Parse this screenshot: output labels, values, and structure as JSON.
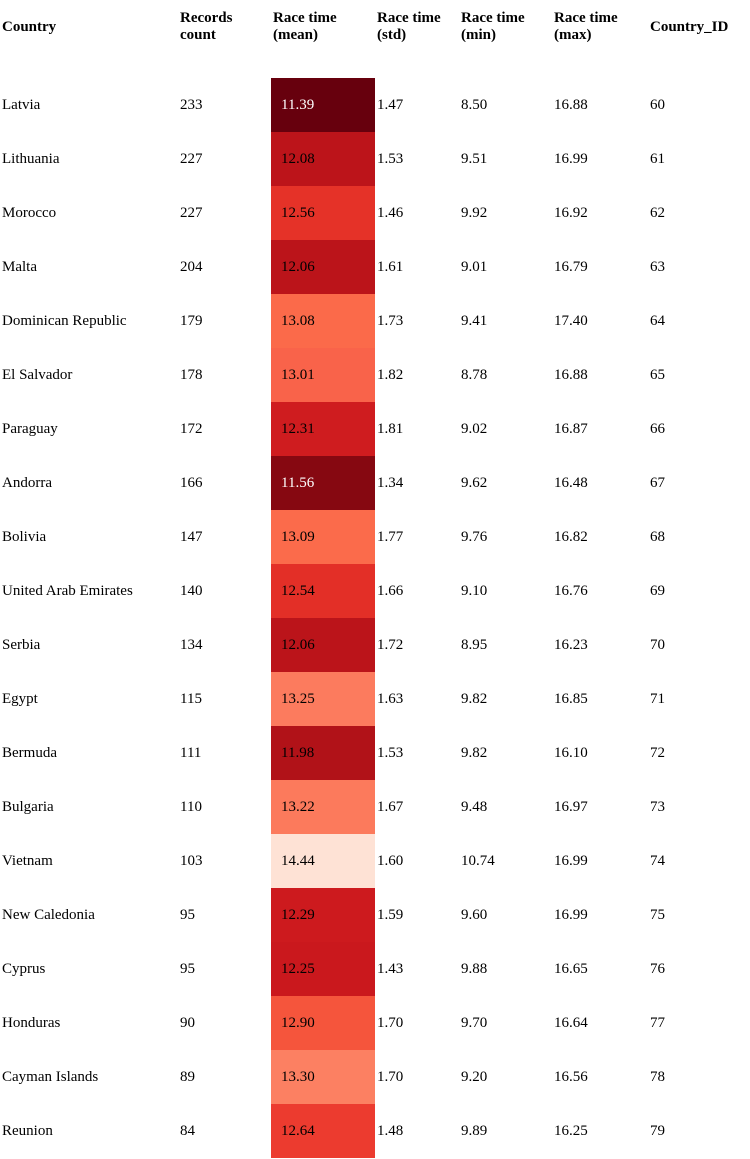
{
  "chart_data": {
    "type": "table",
    "columns": [
      "Country",
      "Records count",
      "Race time (mean)",
      "Race time (std)",
      "Race time (min)",
      "Race time (max)",
      "Country_ID"
    ],
    "rows": [
      [
        "Latvia",
        "233",
        "11.39",
        "1.47",
        "8.50",
        "16.88",
        "60"
      ],
      [
        "Lithuania",
        "227",
        "12.08",
        "1.53",
        "9.51",
        "16.99",
        "61"
      ],
      [
        "Morocco",
        "227",
        "12.56",
        "1.46",
        "9.92",
        "16.92",
        "62"
      ],
      [
        "Malta",
        "204",
        "12.06",
        "1.61",
        "9.01",
        "16.79",
        "63"
      ],
      [
        "Dominican Republic",
        "179",
        "13.08",
        "1.73",
        "9.41",
        "17.40",
        "64"
      ],
      [
        "El Salvador",
        "178",
        "13.01",
        "1.82",
        "8.78",
        "16.88",
        "65"
      ],
      [
        "Paraguay",
        "172",
        "12.31",
        "1.81",
        "9.02",
        "16.87",
        "66"
      ],
      [
        "Andorra",
        "166",
        "11.56",
        "1.34",
        "9.62",
        "16.48",
        "67"
      ],
      [
        "Bolivia",
        "147",
        "13.09",
        "1.77",
        "9.76",
        "16.82",
        "68"
      ],
      [
        "United Arab Emirates",
        "140",
        "12.54",
        "1.66",
        "9.10",
        "16.76",
        "69"
      ],
      [
        "Serbia",
        "134",
        "12.06",
        "1.72",
        "8.95",
        "16.23",
        "70"
      ],
      [
        "Egypt",
        "115",
        "13.25",
        "1.63",
        "9.82",
        "16.85",
        "71"
      ],
      [
        "Bermuda",
        "111",
        "11.98",
        "1.53",
        "9.82",
        "16.10",
        "72"
      ],
      [
        "Bulgaria",
        "110",
        "13.22",
        "1.67",
        "9.48",
        "16.97",
        "73"
      ],
      [
        "Vietnam",
        "103",
        "14.44",
        "1.60",
        "10.74",
        "16.99",
        "74"
      ],
      [
        "New Caledonia",
        "95",
        "12.29",
        "1.59",
        "9.60",
        "16.99",
        "75"
      ],
      [
        "Cyprus",
        "95",
        "12.25",
        "1.43",
        "9.88",
        "16.65",
        "76"
      ],
      [
        "Honduras",
        "90",
        "12.90",
        "1.70",
        "9.70",
        "16.64",
        "77"
      ],
      [
        "Cayman Islands",
        "89",
        "13.30",
        "1.70",
        "9.20",
        "16.56",
        "78"
      ],
      [
        "Reunion",
        "84",
        "12.64",
        "1.48",
        "9.89",
        "16.25",
        "79"
      ]
    ],
    "heatmap_column": 2,
    "heatmap_colors": {
      "11.39": "#67000d",
      "11.56": "#860811",
      "11.98": "#b11218",
      "12.06": "#bb141a",
      "12.08": "#bc141a",
      "12.25": "#ca181d",
      "12.29": "#cd1a1e",
      "12.31": "#cf1c1f",
      "12.54": "#e32f27",
      "12.56": "#e53228",
      "12.64": "#ec3b2f",
      "12.90": "#f5553c",
      "13.01": "#f9634a",
      "13.08": "#fb6a4a",
      "13.09": "#fb6b4b",
      "13.22": "#fc7a5c",
      "13.25": "#fc7b5e",
      "13.30": "#fc8062",
      "14.44": "#fee2d5"
    },
    "dark_text_values": [
      "11.39",
      "11.56"
    ]
  }
}
